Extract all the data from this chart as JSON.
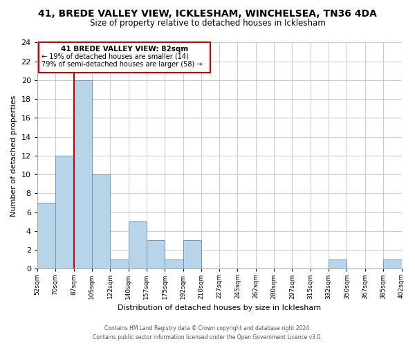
{
  "title": "41, BREDE VALLEY VIEW, ICKLESHAM, WINCHELSEA, TN36 4DA",
  "subtitle": "Size of property relative to detached houses in Icklesham",
  "xlabel": "Distribution of detached houses by size in Icklesham",
  "ylabel": "Number of detached properties",
  "bin_labels": [
    "52sqm",
    "70sqm",
    "87sqm",
    "105sqm",
    "122sqm",
    "140sqm",
    "157sqm",
    "175sqm",
    "192sqm",
    "210sqm",
    "227sqm",
    "245sqm",
    "262sqm",
    "280sqm",
    "297sqm",
    "315sqm",
    "332sqm",
    "350sqm",
    "367sqm",
    "385sqm",
    "402sqm"
  ],
  "bar_values": [
    7,
    12,
    20,
    10,
    1,
    5,
    3,
    1,
    3,
    0,
    0,
    0,
    0,
    0,
    0,
    0,
    1,
    0,
    0,
    1
  ],
  "bar_color": "#b8d4e8",
  "bar_edge_color": "#6699cc",
  "ylim": [
    0,
    24
  ],
  "yticks": [
    0,
    2,
    4,
    6,
    8,
    10,
    12,
    14,
    16,
    18,
    20,
    22,
    24
  ],
  "annotation_title": "41 BREDE VALLEY VIEW: 82sqm",
  "annotation_line1": "← 19% of detached houses are smaller (14)",
  "annotation_line2": "79% of semi-detached houses are larger (58) →",
  "annotation_box_color": "#ffffff",
  "annotation_box_edge_color": "#cc0000",
  "footer_line1": "Contains HM Land Registry data © Crown copyright and database right 2024.",
  "footer_line2": "Contains public sector information licensed under the Open Government Licence v3.0.",
  "background_color": "#ffffff",
  "grid_color": "#cccccc"
}
